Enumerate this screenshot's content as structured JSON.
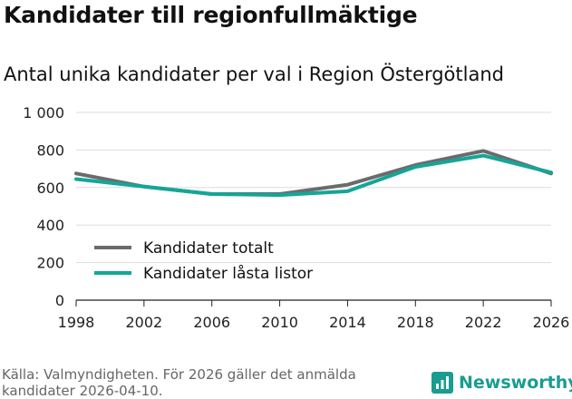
{
  "title": "Kandidater till regionfullmäktige",
  "subtitle": "Antal unika kandidater per val i Region Östergötland",
  "source": "Källa: Valmyndigheten. För 2026 gäller det anmälda kandidater 2026-04-10.",
  "brand": "Newsworthy",
  "colors": {
    "totalt": "#6b6b6e",
    "lasta": "#14a697",
    "brand": "#1a9c91"
  },
  "chart_data": {
    "type": "line",
    "x": [
      1998,
      2002,
      2006,
      2010,
      2014,
      2018,
      2022,
      2026
    ],
    "x_labels": [
      "1998",
      "2002",
      "2006",
      "2010",
      "2014",
      "2018",
      "2022",
      "2026"
    ],
    "y_ticks": [
      0,
      200,
      400,
      600,
      800,
      1000
    ],
    "y_tick_labels": [
      "0",
      "200",
      "400",
      "600",
      "800",
      "1 000"
    ],
    "ylim": [
      0,
      1000
    ],
    "legend_position": "bottom-left",
    "series": [
      {
        "name": "Kandidater totalt",
        "color": "#6b6b6e",
        "values": [
          675,
          605,
          565,
          565,
          615,
          720,
          795,
          675
        ]
      },
      {
        "name": "Kandidater låsta listor",
        "color": "#14a697",
        "values": [
          645,
          605,
          565,
          560,
          580,
          710,
          770,
          680
        ]
      }
    ]
  }
}
